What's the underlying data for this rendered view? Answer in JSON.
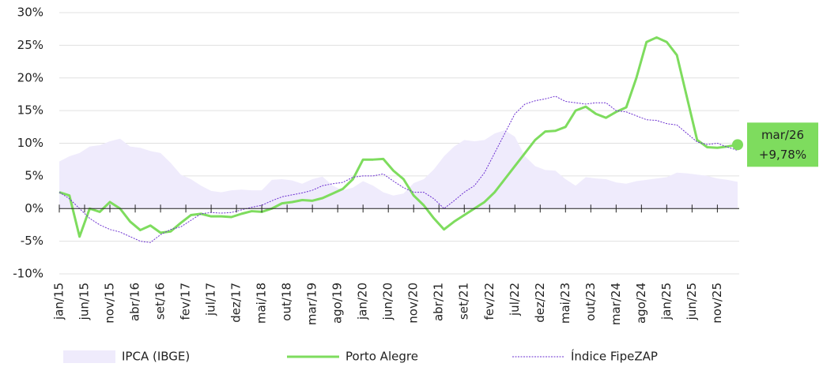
{
  "chart_data": {
    "type": "line",
    "x": [
      0,
      2,
      4,
      6,
      8,
      10,
      12,
      14,
      16,
      18,
      20,
      22,
      24,
      26,
      28,
      30,
      32,
      34,
      36,
      38,
      40,
      42,
      44,
      46,
      48,
      50,
      52,
      54,
      56,
      58,
      60,
      62,
      64,
      66,
      68,
      70,
      72,
      74,
      76,
      78,
      80,
      82,
      84,
      86,
      88,
      90,
      92,
      94,
      96,
      98,
      100,
      102,
      104,
      106,
      108,
      110,
      112,
      114,
      116,
      118,
      120,
      122,
      124,
      126,
      128,
      130,
      132,
      134
    ],
    "xlim": [
      0,
      134
    ],
    "xticks": [
      {
        "value": 0,
        "label": "jan/15"
      },
      {
        "value": 5,
        "label": "jun/15"
      },
      {
        "value": 10,
        "label": "nov/15"
      },
      {
        "value": 15,
        "label": "abr/16"
      },
      {
        "value": 20,
        "label": "set/16"
      },
      {
        "value": 25,
        "label": "fev/17"
      },
      {
        "value": 30,
        "label": "jul/17"
      },
      {
        "value": 35,
        "label": "dez/17"
      },
      {
        "value": 40,
        "label": "mai/18"
      },
      {
        "value": 45,
        "label": "out/18"
      },
      {
        "value": 50,
        "label": "mar/19"
      },
      {
        "value": 55,
        "label": "ago/19"
      },
      {
        "value": 60,
        "label": "jan/20"
      },
      {
        "value": 65,
        "label": "jun/20"
      },
      {
        "value": 70,
        "label": "nov/20"
      },
      {
        "value": 75,
        "label": "abr/21"
      },
      {
        "value": 80,
        "label": "set/21"
      },
      {
        "value": 85,
        "label": "fev/22"
      },
      {
        "value": 90,
        "label": "jul/22"
      },
      {
        "value": 95,
        "label": "dez/22"
      },
      {
        "value": 100,
        "label": "mai/23"
      },
      {
        "value": 105,
        "label": "out/23"
      },
      {
        "value": 110,
        "label": "mar/24"
      },
      {
        "value": 115,
        "label": "ago/24"
      },
      {
        "value": 120,
        "label": "jan/25"
      },
      {
        "value": 125,
        "label": "jun/25"
      },
      {
        "value": 130,
        "label": "nov/25"
      }
    ],
    "ylim": [
      -10,
      30
    ],
    "yticks": [
      {
        "value": -10,
        "label": "-10%"
      },
      {
        "value": -5,
        "label": "-5%"
      },
      {
        "value": 0,
        "label": "0%"
      },
      {
        "value": 5,
        "label": "5%"
      },
      {
        "value": 10,
        "label": "10%"
      },
      {
        "value": 15,
        "label": "15%"
      },
      {
        "value": 20,
        "label": "20%"
      },
      {
        "value": 25,
        "label": "25%"
      },
      {
        "value": 30,
        "label": "30%"
      }
    ],
    "grid": true,
    "series": [
      {
        "name": "IPCA (IBGE)",
        "type": "area",
        "color": "#efebfc",
        "values": [
          7.2,
          8,
          8.5,
          9.5,
          9.7,
          10.3,
          10.7,
          9.5,
          9.3,
          8.8,
          8.5,
          7,
          5.2,
          4.5,
          3.5,
          2.7,
          2.5,
          2.8,
          2.9,
          2.8,
          2.8,
          4.4,
          4.5,
          4.3,
          3.8,
          4.5,
          4.9,
          3.5,
          2.8,
          3.2,
          4.2,
          3.5,
          2.5,
          2,
          2.3,
          3.9,
          4.5,
          6,
          8,
          9.5,
          10.5,
          10.3,
          10.5,
          11.5,
          12,
          11,
          8,
          6.5,
          5.9,
          5.8,
          4.5,
          3.5,
          4.8,
          4.6,
          4.5,
          4,
          3.8,
          4.2,
          4.4,
          4.6,
          4.8,
          5.5,
          5.4,
          5.2,
          5,
          4.6,
          4.4,
          4.1
        ]
      },
      {
        "name": "Porto Alegre",
        "type": "line",
        "color": "#7edc5e",
        "values": [
          2.5,
          2,
          -4.3,
          0,
          -0.5,
          1,
          0,
          -2,
          -3.3,
          -2.6,
          -3.7,
          -3.5,
          -2.2,
          -1,
          -0.8,
          -1.2,
          -1.2,
          -1.3,
          -0.8,
          -0.4,
          -0.5,
          0,
          0.8,
          1,
          1.3,
          1.2,
          1.6,
          2.3,
          3,
          4.5,
          7.5,
          7.5,
          7.6,
          5.8,
          4.5,
          2,
          0.5,
          -1.5,
          -3.2,
          -2,
          -1,
          0,
          1,
          2.5,
          4.5,
          6.5,
          8.5,
          10.5,
          11.8,
          11.9,
          12.5,
          15,
          15.6,
          14.5,
          13.9,
          14.8,
          15.5,
          20,
          25.5,
          26.2,
          25.5,
          23.5,
          17,
          10.5,
          9.4,
          9.3,
          9.5,
          9.78
        ]
      },
      {
        "name": "Índice FipeZAP",
        "type": "dotted",
        "color": "#6b2fd0",
        "values": [
          2.5,
          1.5,
          0,
          -1.5,
          -2.5,
          -3.2,
          -3.6,
          -4.3,
          -5,
          -5.2,
          -4,
          -3.2,
          -2.8,
          -1.8,
          -0.8,
          -0.6,
          -0.7,
          -0.6,
          -0.2,
          0.2,
          0.5,
          1.2,
          1.8,
          2.1,
          2.4,
          2.8,
          3.5,
          3.8,
          4,
          4.8,
          5,
          5,
          5.3,
          4.2,
          3.2,
          2.5,
          2.5,
          1.5,
          0,
          1.2,
          2.5,
          3.5,
          5.5,
          8.5,
          11.5,
          14.5,
          16,
          16.5,
          16.8,
          17.2,
          16.4,
          16.2,
          16,
          16.2,
          16.2,
          15,
          14.8,
          14.2,
          13.6,
          13.5,
          13,
          12.8,
          11.5,
          10.2,
          9.8,
          10,
          9.4,
          8.9
        ]
      }
    ],
    "annotation": {
      "label": "mar/26",
      "value_label": "+9,78%"
    }
  }
}
